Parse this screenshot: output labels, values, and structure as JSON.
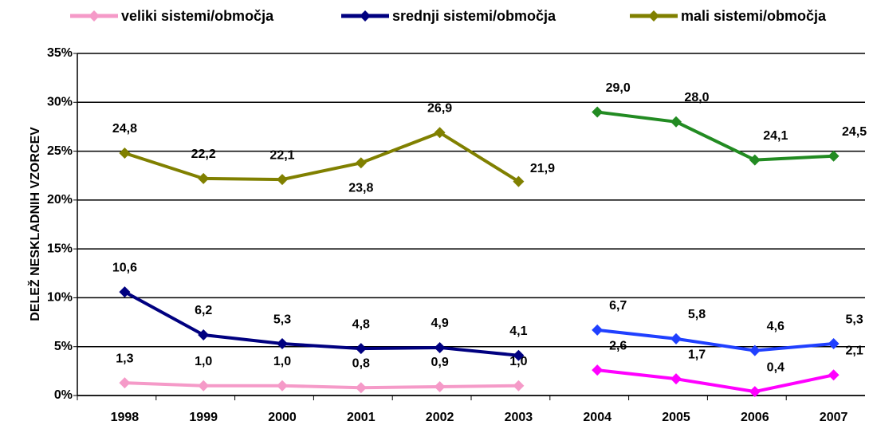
{
  "chart_data": {
    "type": "line",
    "ylabel": "DELEŽ NESKLADNIH VZORCEV",
    "categories": [
      "1998",
      "1999",
      "2000",
      "2001",
      "2002",
      "2003",
      "2004",
      "2005",
      "2006",
      "2007"
    ],
    "series": [
      {
        "name": "veliki sistemi/območja",
        "color": "#f59ac8",
        "colors": [
          "#f59ac8",
          "#f59ac8",
          "#f59ac8",
          "#f59ac8",
          "#f59ac8",
          "#f59ac8",
          "#ff00ff",
          "#ff00ff",
          "#ff00ff",
          "#ff00ff"
        ],
        "values": [
          1.3,
          1.0,
          1.0,
          0.8,
          0.9,
          1.0,
          2.6,
          1.7,
          0.4,
          2.1
        ],
        "value_labels": [
          "1,3",
          "1,0",
          "1,0",
          "0,8",
          "0,9",
          "1,0",
          "2,6",
          "1,7",
          "0,4",
          "2,1"
        ]
      },
      {
        "name": "srednji sistemi/območja",
        "color": "#000080",
        "colors": [
          "#000080",
          "#000080",
          "#000080",
          "#000080",
          "#000080",
          "#000080",
          "#2040ff",
          "#2040ff",
          "#2040ff",
          "#2040ff"
        ],
        "values": [
          10.6,
          6.2,
          5.3,
          4.8,
          4.9,
          4.1,
          6.7,
          5.8,
          4.6,
          5.3
        ],
        "value_labels": [
          "10,6",
          "6,2",
          "5,3",
          "4,8",
          "4,9",
          "4,1",
          "6,7",
          "5,8",
          "4,6",
          "5,3"
        ]
      },
      {
        "name": "mali sistemi/območja",
        "color": "#808000",
        "colors": [
          "#808000",
          "#808000",
          "#808000",
          "#808000",
          "#808000",
          "#808000",
          "#228b22",
          "#228b22",
          "#228b22",
          "#228b22"
        ],
        "values": [
          24.8,
          22.2,
          22.1,
          23.8,
          26.9,
          21.9,
          29.0,
          28.0,
          24.1,
          24.5
        ],
        "value_labels": [
          "24,8",
          "22,2",
          "22,1",
          "23,8",
          "26,9",
          "21,9",
          "29,0",
          "28,0",
          "24,1",
          "24,5"
        ]
      }
    ],
    "ylim": [
      0,
      35
    ],
    "yticks": [
      {
        "value": 0,
        "label": "0%"
      },
      {
        "value": 5,
        "label": "5%"
      },
      {
        "value": 10,
        "label": "10%"
      },
      {
        "value": 15,
        "label": "15%"
      },
      {
        "value": 20,
        "label": "20%"
      },
      {
        "value": 25,
        "label": "25%"
      },
      {
        "value": 30,
        "label": "30%"
      },
      {
        "value": 35,
        "label": "35%"
      }
    ],
    "grid": true,
    "legend": "top"
  }
}
